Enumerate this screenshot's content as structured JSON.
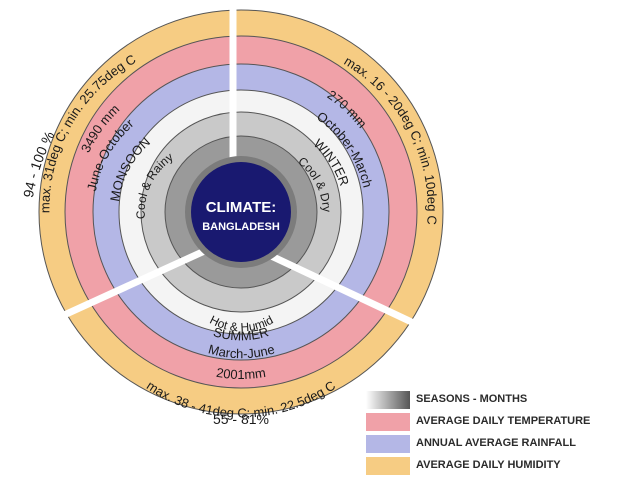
{
  "center": {
    "line1": "CLIMATE:",
    "line2": "BANGLADESH"
  },
  "colors": {
    "humidity": "#f6cc83",
    "temperature": "#f0a1a8",
    "rainfall": "#b4b7e6",
    "months": "#f4f4f4",
    "season": "#c9c9c9",
    "character": "#9a9a9a",
    "center": "#191970",
    "divider": "#ffffff"
  },
  "sectors": [
    {
      "id": "monsoon",
      "season": "MONSOON",
      "months": "June-October",
      "character": "Cool & Rainy",
      "rainfall": "3490 mm",
      "temperature": "max. 31deg C; min. 25.75deg C",
      "humidity": "94 - 100 %"
    },
    {
      "id": "winter",
      "season": "WINTER",
      "months": "October-March",
      "character": "Cool & Dry",
      "rainfall": "270 mm",
      "temperature": "max. 16 - 20deg C; min. 10deg C",
      "humidity": ""
    },
    {
      "id": "summer",
      "season": "SUMMER",
      "months": "March-June",
      "character": "Hot & Humid",
      "rainfall": "2001mm",
      "temperature": "max. 38 - 41deg C; min. 22.5deg C",
      "humidity": "55 - 81%"
    }
  ],
  "legend": [
    {
      "label": "SEASONS - MONTHS",
      "swatch": "gradient"
    },
    {
      "label": "AVERAGE DAILY TEMPERATURE",
      "swatch": "#f0a1a8"
    },
    {
      "label": "ANNUAL AVERAGE RAINFALL",
      "swatch": "#b4b7e6"
    },
    {
      "label": "AVERAGE DAILY HUMIDITY",
      "swatch": "#f6cc83"
    }
  ]
}
